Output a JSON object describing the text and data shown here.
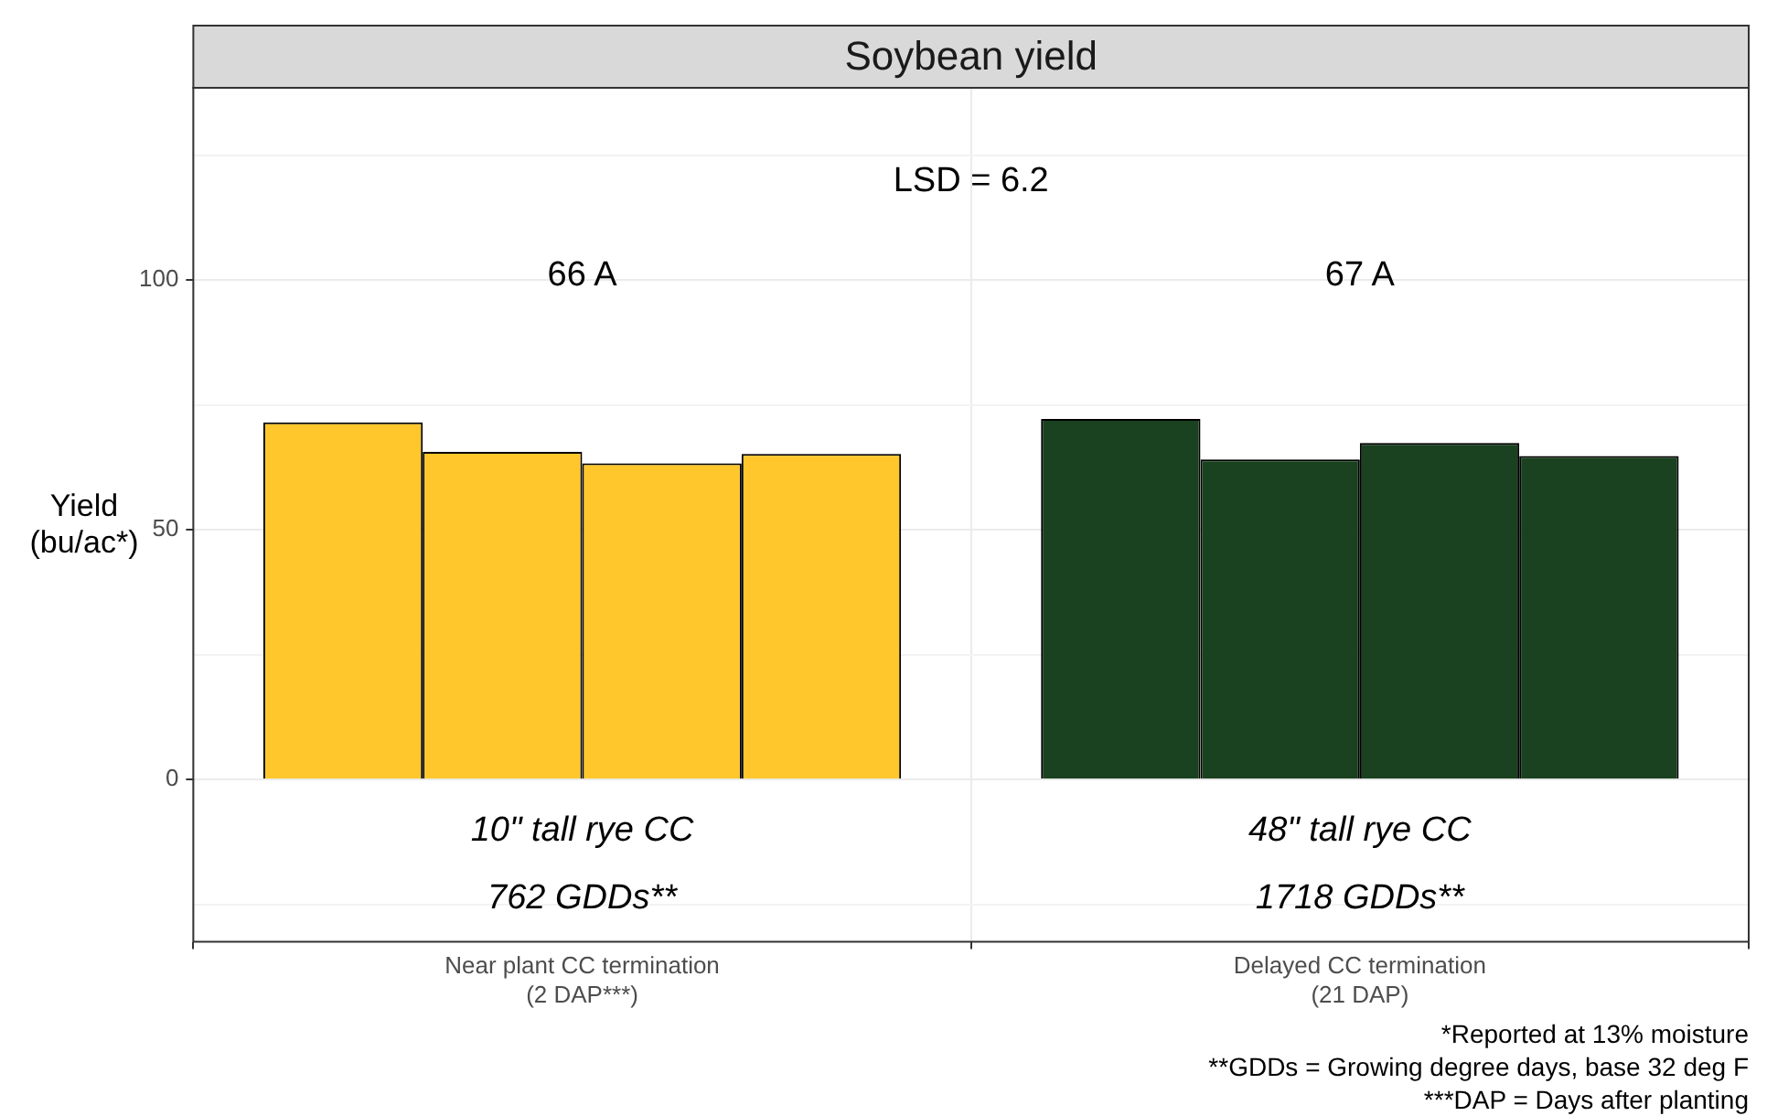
{
  "chart_data": {
    "type": "bar",
    "title": "Soybean yield",
    "ylabel": "Yield\n(bu/ac*)",
    "categories": [
      "Near plant CC termination\n(2 DAP***)",
      "Delayed CC termination\n(21 DAP)"
    ],
    "series": [
      {
        "colors": [
          "#ffc72c",
          "#1b4220"
        ],
        "values": [
          71.5,
          72.2
        ]
      },
      {
        "colors": [
          "#ffc72c",
          "#1b4220"
        ],
        "values": [
          65.6,
          64.1
        ]
      },
      {
        "colors": [
          "#ffc72c",
          "#1b4220"
        ],
        "values": [
          63.3,
          67.4
        ]
      },
      {
        "colors": [
          "#ffc72c",
          "#1b4220"
        ],
        "values": [
          65.2,
          64.8
        ]
      }
    ],
    "ylim": [
      -32.5,
      138.5
    ],
    "yticks": [
      {
        "value": -25,
        "label": null
      },
      0,
      {
        "value": 25,
        "label": null
      },
      50,
      {
        "value": 75,
        "label": null
      },
      100,
      {
        "value": 125,
        "label": null
      }
    ],
    "grid": true,
    "legend": false,
    "annotations": [
      "LSD = 6.2",
      "66 A",
      "67 A",
      "10\" tall rye CC",
      "762 GDDs**",
      "48\" tall rye CC",
      "1718 GDDs**",
      "*Reported at 13% moisture",
      "**GDDs = Growing degree days, base 32 deg F",
      "***DAP = Days after planting"
    ]
  }
}
